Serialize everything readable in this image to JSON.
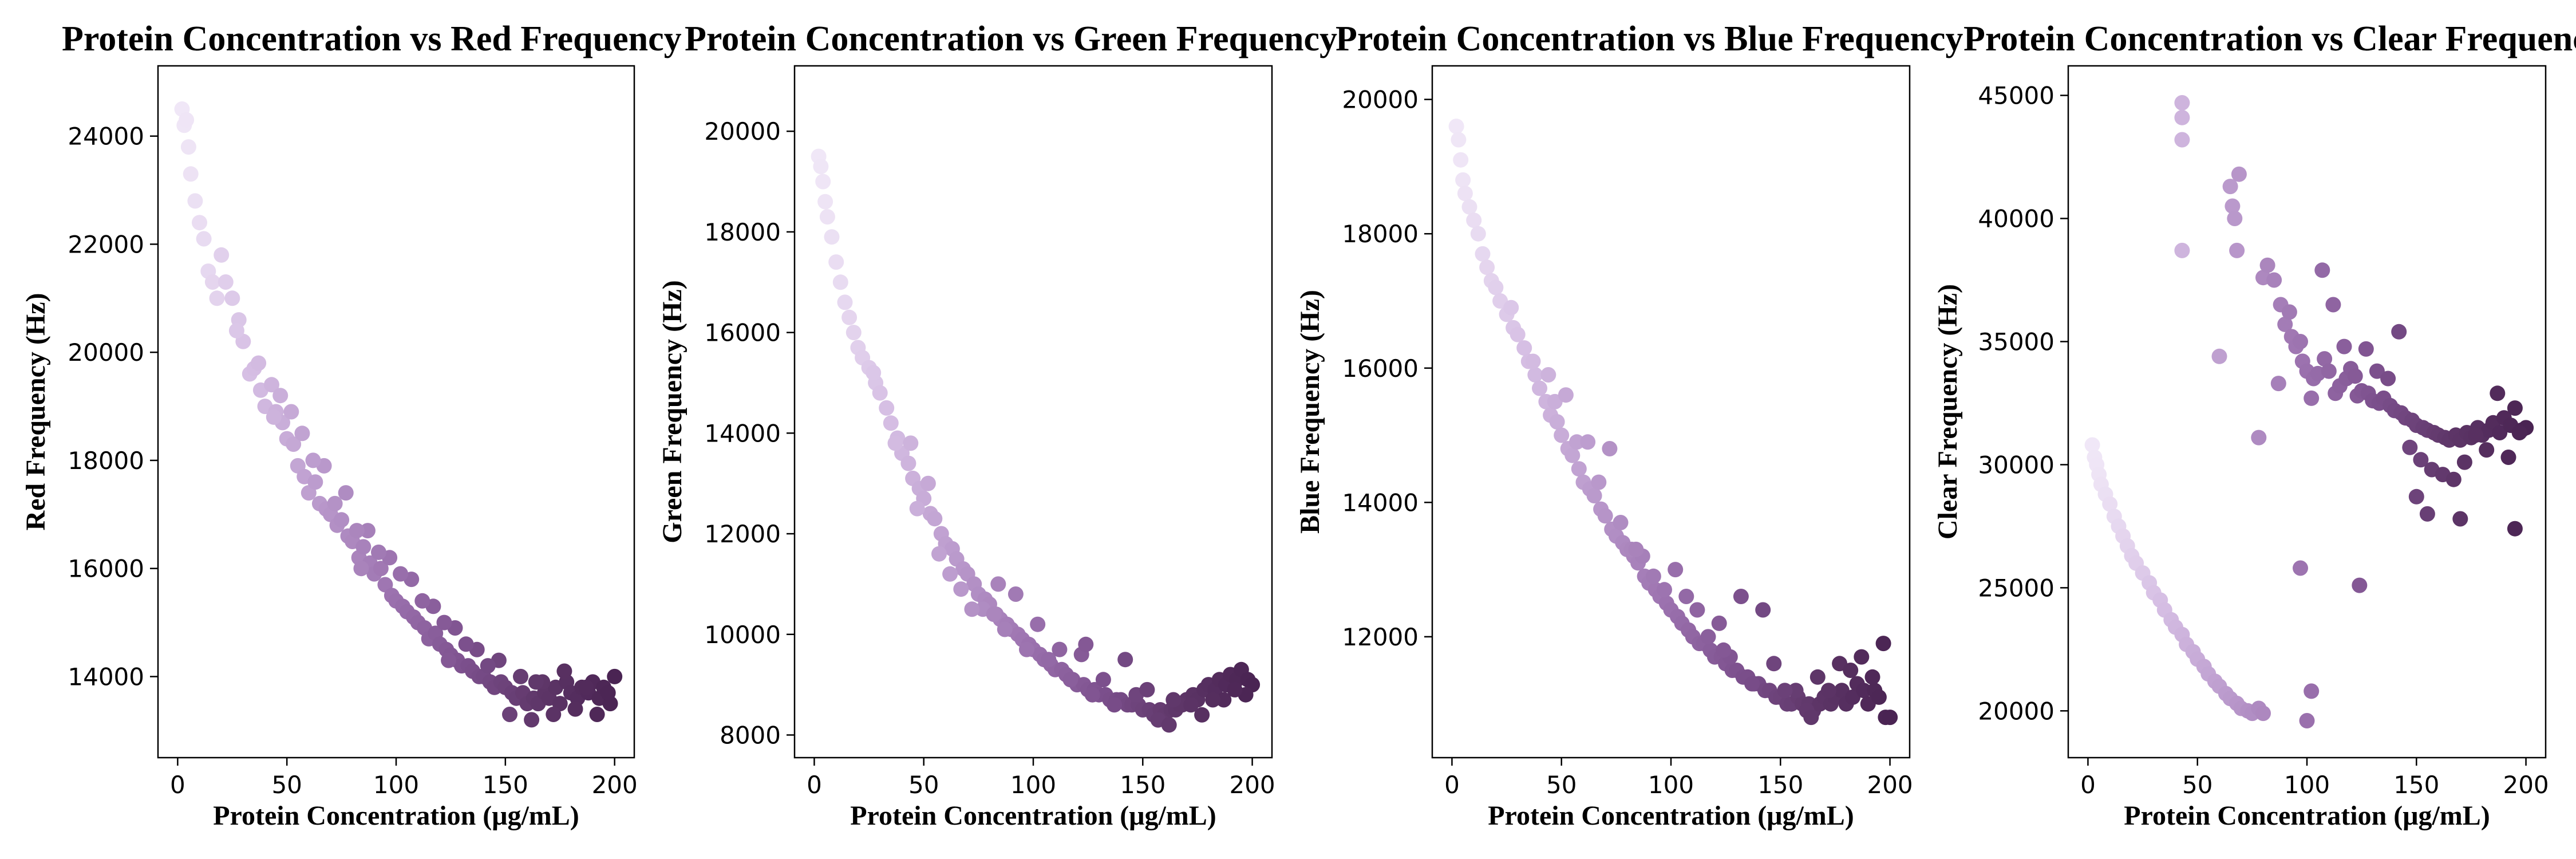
{
  "colors": {
    "gradient": [
      "#f2eaf8",
      "#d6bfe4",
      "#b998cb",
      "#9a70ad",
      "#7b4f8c",
      "#5e3668",
      "#4a2453"
    ]
  },
  "chart_data": [
    {
      "type": "scatter",
      "title": "Protein Concentration vs Red Frequency",
      "xlabel": "Protein Concentration (μg/mL)",
      "ylabel": "Red Frequency (Hz)",
      "xlim": [
        -9,
        209
      ],
      "ylim": [
        12500,
        25300
      ],
      "xticks": [
        "0",
        "50",
        "100",
        "150",
        "200"
      ],
      "yticks": [
        "14000",
        "16000",
        "18000",
        "20000",
        "22000",
        "24000"
      ],
      "x": [
        2,
        3,
        4,
        5,
        6,
        8,
        10,
        12,
        14,
        16,
        18,
        20,
        22,
        25,
        28,
        30,
        33,
        35,
        38,
        40,
        43,
        45,
        48,
        50,
        53,
        55,
        58,
        60,
        63,
        65,
        68,
        70,
        73,
        75,
        78,
        80,
        83,
        85,
        88,
        90,
        93,
        95,
        98,
        100,
        103,
        105,
        108,
        110,
        113,
        115,
        118,
        120,
        123,
        125,
        128,
        130,
        133,
        135,
        138,
        140,
        143,
        145,
        148,
        150,
        153,
        155,
        158,
        160,
        163,
        165,
        168,
        170,
        173,
        175,
        178,
        180,
        183,
        185,
        188,
        190,
        193,
        195,
        198,
        200,
        27,
        37,
        47,
        57,
        67,
        77,
        87,
        97,
        107,
        117,
        127,
        137,
        147,
        157,
        167,
        177,
        187,
        197,
        52,
        62,
        72,
        82,
        92,
        102,
        112,
        122,
        132,
        142,
        152,
        162,
        172,
        182,
        192,
        44,
        84,
        124,
        164
      ],
      "y": [
        24500,
        24200,
        24300,
        23800,
        23300,
        22800,
        22400,
        22100,
        21500,
        21300,
        21000,
        21800,
        21300,
        21000,
        20600,
        20200,
        19600,
        19700,
        19300,
        19000,
        19400,
        18900,
        18700,
        18400,
        18300,
        17900,
        17700,
        17400,
        17600,
        17200,
        17100,
        17000,
        16800,
        16900,
        16600,
        16500,
        16200,
        16400,
        16100,
        15900,
        16000,
        15700,
        15500,
        15400,
        15300,
        15200,
        15100,
        15000,
        14900,
        14700,
        14800,
        14600,
        14500,
        14400,
        14300,
        14200,
        14200,
        14100,
        14000,
        14000,
        13900,
        13800,
        13900,
        13800,
        13700,
        13600,
        13700,
        13500,
        13600,
        13500,
        13700,
        13600,
        13800,
        13500,
        13900,
        13700,
        13600,
        13800,
        13700,
        13900,
        13600,
        13800,
        13500,
        14000,
        20400,
        19800,
        19200,
        18500,
        17900,
        17400,
        16700,
        16200,
        15800,
        15300,
        14900,
        14500,
        14300,
        14000,
        13900,
        14100,
        13800,
        13700,
        18900,
        18000,
        17200,
        16700,
        16300,
        15900,
        15400,
        15000,
        14600,
        14200,
        13300,
        13200,
        13300,
        13400,
        13300,
        18800,
        16000,
        14300,
        13900
      ],
      "grid": false,
      "legend": "none"
    },
    {
      "type": "scatter",
      "title": "Protein Concentration vs Green Frequency",
      "xlabel": "Protein Concentration (μg/mL)",
      "ylabel": "Green Frequency (Hz)",
      "xlim": [
        -9,
        209
      ],
      "ylim": [
        7550,
        21300
      ],
      "xticks": [
        "0",
        "50",
        "100",
        "150",
        "200"
      ],
      "yticks": [
        "8000",
        "10000",
        "12000",
        "14000",
        "16000",
        "18000",
        "20000"
      ],
      "x": [
        2,
        3,
        4,
        5,
        6,
        8,
        10,
        12,
        14,
        16,
        18,
        20,
        22,
        25,
        28,
        30,
        33,
        35,
        38,
        40,
        43,
        45,
        48,
        50,
        53,
        55,
        58,
        60,
        63,
        65,
        68,
        70,
        73,
        75,
        78,
        80,
        83,
        85,
        88,
        90,
        93,
        95,
        98,
        100,
        103,
        105,
        108,
        110,
        113,
        115,
        118,
        120,
        123,
        125,
        128,
        130,
        133,
        135,
        138,
        140,
        143,
        145,
        148,
        150,
        153,
        155,
        158,
        160,
        163,
        165,
        168,
        170,
        173,
        175,
        178,
        180,
        183,
        185,
        188,
        190,
        193,
        195,
        198,
        200,
        27,
        37,
        47,
        57,
        67,
        77,
        87,
        97,
        107,
        117,
        127,
        137,
        147,
        157,
        167,
        177,
        187,
        197,
        52,
        62,
        72,
        82,
        92,
        102,
        112,
        122,
        132,
        142,
        152,
        162,
        172,
        182,
        192,
        44,
        84,
        124,
        164
      ],
      "y": [
        19500,
        19300,
        19000,
        18600,
        18300,
        17900,
        17400,
        17000,
        16600,
        16300,
        16000,
        15700,
        15500,
        15300,
        15000,
        14800,
        14500,
        14200,
        13900,
        13600,
        13400,
        13100,
        12900,
        12700,
        12400,
        12300,
        12000,
        11800,
        11700,
        11500,
        11300,
        11200,
        11000,
        10800,
        10700,
        10600,
        10400,
        10300,
        10200,
        10100,
        10000,
        9900,
        9800,
        9700,
        9600,
        9500,
        9400,
        9300,
        9300,
        9200,
        9100,
        9000,
        9000,
        8900,
        8900,
        8800,
        8800,
        8700,
        8700,
        8700,
        8600,
        8600,
        8600,
        8500,
        8500,
        8400,
        8500,
        8400,
        8500,
        8500,
        8600,
        8700,
        8800,
        8700,
        8900,
        9000,
        8900,
        9100,
        9000,
        9200,
        9100,
        9300,
        9100,
        9000,
        15200,
        13800,
        12500,
        11600,
        10900,
        10500,
        10100,
        9700,
        9500,
        9100,
        8800,
        8600,
        8800,
        8300,
        8600,
        8400,
        8700,
        8800,
        13000,
        11200,
        10500,
        10400,
        10800,
        10200,
        9700,
        9600,
        9100,
        9500,
        8900,
        8200,
        8600,
        8700,
        8900,
        13800,
        11000,
        9800,
        8700
      ],
      "grid": false,
      "legend": "none"
    },
    {
      "type": "scatter",
      "title": "Protein Concentration vs Blue Frequency",
      "xlabel": "Protein Concentration (μg/mL)",
      "ylabel": "Blue Frequency (Hz)",
      "xlim": [
        -9,
        209
      ],
      "ylim": [
        10200,
        20500
      ],
      "xticks": [
        "0",
        "50",
        "100",
        "150",
        "200"
      ],
      "yticks": [
        "12000",
        "14000",
        "16000",
        "18000",
        "20000"
      ],
      "x": [
        2,
        3,
        4,
        5,
        6,
        8,
        10,
        12,
        14,
        16,
        18,
        20,
        22,
        25,
        28,
        30,
        33,
        35,
        38,
        40,
        43,
        45,
        48,
        50,
        53,
        55,
        58,
        60,
        63,
        65,
        68,
        70,
        73,
        75,
        78,
        80,
        83,
        85,
        88,
        90,
        93,
        95,
        98,
        100,
        103,
        105,
        108,
        110,
        113,
        115,
        118,
        120,
        123,
        125,
        128,
        130,
        133,
        135,
        138,
        140,
        143,
        145,
        148,
        150,
        153,
        155,
        158,
        160,
        163,
        165,
        168,
        170,
        173,
        175,
        178,
        180,
        183,
        185,
        188,
        190,
        193,
        195,
        198,
        200,
        27,
        37,
        47,
        57,
        67,
        77,
        87,
        97,
        107,
        117,
        127,
        137,
        147,
        157,
        167,
        177,
        187,
        197,
        52,
        62,
        72,
        82,
        92,
        102,
        112,
        122,
        132,
        142,
        152,
        162,
        172,
        182,
        192,
        44,
        84,
        124,
        164
      ],
      "y": [
        19600,
        19400,
        19100,
        18800,
        18600,
        18400,
        18200,
        18000,
        17700,
        17500,
        17300,
        17200,
        17000,
        16800,
        16600,
        16500,
        16300,
        16100,
        15900,
        15700,
        15500,
        15300,
        15200,
        15000,
        14800,
        14700,
        14500,
        14300,
        14200,
        14100,
        13900,
        13800,
        13600,
        13500,
        13400,
        13300,
        13200,
        13100,
        12900,
        12800,
        12700,
        12600,
        12500,
        12400,
        12300,
        12200,
        12100,
        12000,
        11900,
        11900,
        11800,
        11700,
        11700,
        11600,
        11500,
        11500,
        11400,
        11400,
        11300,
        11300,
        11200,
        11200,
        11100,
        11100,
        11000,
        11000,
        11100,
        11000,
        11000,
        10900,
        11000,
        11100,
        11000,
        11100,
        11200,
        11000,
        11100,
        11300,
        11200,
        11000,
        11200,
        11100,
        10800,
        10800,
        16900,
        16100,
        15500,
        14900,
        14300,
        13700,
        13200,
        12700,
        12600,
        12000,
        11700,
        11300,
        11600,
        11200,
        11400,
        11600,
        11700,
        11900,
        15600,
        14900,
        14800,
        13300,
        12900,
        13000,
        12400,
        12200,
        12600,
        12400,
        11200,
        10900,
        11200,
        11500,
        11400,
        15900,
        13300,
        11800,
        10800
      ],
      "grid": false,
      "legend": "none"
    },
    {
      "type": "scatter",
      "title": "Protein Concentration vs Clear Frequency",
      "xlabel": "Protein Concentration (μg/mL)",
      "ylabel": "Clear Frequency (Hz)",
      "xlim": [
        -9,
        209
      ],
      "ylim": [
        18100,
        46200
      ],
      "xticks": [
        "0",
        "50",
        "100",
        "150",
        "200"
      ],
      "yticks": [
        "20000",
        "25000",
        "30000",
        "35000",
        "40000",
        "45000"
      ],
      "x": [
        2,
        3,
        4,
        5,
        6,
        8,
        10,
        12,
        14,
        16,
        18,
        20,
        22,
        25,
        28,
        30,
        33,
        35,
        38,
        40,
        43,
        45,
        48,
        50,
        53,
        55,
        58,
        60,
        63,
        65,
        68,
        70,
        73,
        75,
        78,
        80,
        43,
        43,
        43,
        43,
        65,
        66,
        67,
        68,
        69,
        80,
        82,
        85,
        88,
        90,
        93,
        95,
        98,
        100,
        103,
        105,
        108,
        110,
        113,
        115,
        118,
        120,
        123,
        125,
        128,
        130,
        133,
        135,
        138,
        140,
        143,
        145,
        148,
        150,
        153,
        155,
        158,
        160,
        163,
        165,
        168,
        170,
        173,
        175,
        178,
        180,
        183,
        185,
        188,
        190,
        193,
        195,
        198,
        200,
        87,
        92,
        97,
        102,
        107,
        112,
        117,
        122,
        127,
        132,
        137,
        142,
        147,
        152,
        157,
        162,
        167,
        172,
        177,
        182,
        187,
        192,
        197,
        60,
        78,
        97,
        100,
        102,
        124,
        150,
        155,
        170,
        195
      ],
      "y": [
        30800,
        30300,
        30000,
        29600,
        29200,
        28800,
        28400,
        27900,
        27500,
        27100,
        26700,
        26300,
        26000,
        25600,
        25200,
        24800,
        24500,
        24100,
        23700,
        23400,
        23100,
        22700,
        22400,
        22100,
        21800,
        21500,
        21200,
        21000,
        20700,
        20500,
        20300,
        20100,
        20000,
        19900,
        20100,
        19900,
        44700,
        44100,
        43200,
        38700,
        41300,
        40500,
        40000,
        38700,
        41800,
        37600,
        38100,
        37500,
        36500,
        35700,
        35200,
        34800,
        34200,
        33800,
        33500,
        33700,
        34300,
        33800,
        32900,
        33200,
        33500,
        33900,
        32800,
        33000,
        32900,
        32600,
        32500,
        32700,
        32400,
        32200,
        32100,
        31900,
        31800,
        31600,
        31500,
        31400,
        31300,
        31200,
        31100,
        31000,
        31200,
        31000,
        31300,
        31100,
        31500,
        31200,
        31400,
        31700,
        31300,
        31900,
        31600,
        32300,
        31400,
        31500,
        33300,
        36200,
        35000,
        32700,
        37900,
        36500,
        34800,
        33600,
        34700,
        33800,
        33500,
        35400,
        30700,
        30200,
        29800,
        29600,
        29400,
        30100,
        31200,
        30600,
        32900,
        30300,
        31300,
        34400,
        31100,
        25800,
        19600,
        20800,
        25100,
        28700,
        28000,
        27800,
        27400
      ],
      "grid": false,
      "legend": "none"
    }
  ]
}
